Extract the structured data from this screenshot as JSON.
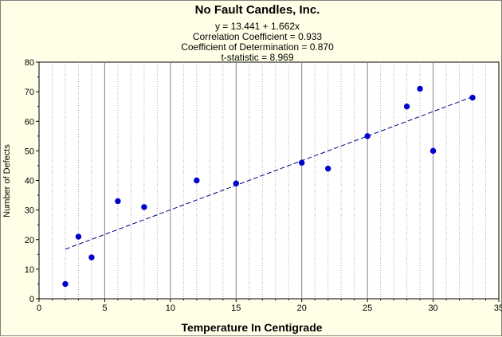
{
  "chart_data": {
    "type": "scatter",
    "title": "No Fault Candles, Inc.",
    "stats": [
      "y = 13.441 + 1.662x",
      "Correlation Coefficient = 0.933",
      "Coefficient of Determination = 0.870",
      "t-statistic = 8.969"
    ],
    "xlabel": "Temperature In Centigrade",
    "ylabel": "Number of Defects",
    "xlim": [
      0,
      35
    ],
    "ylim": [
      0,
      80
    ],
    "xticks": [
      0,
      5,
      10,
      15,
      20,
      25,
      30,
      35
    ],
    "yticks": [
      0,
      10,
      20,
      30,
      40,
      50,
      60,
      70,
      80
    ],
    "grid": true,
    "points": [
      {
        "x": 2,
        "y": 5
      },
      {
        "x": 3,
        "y": 21
      },
      {
        "x": 4,
        "y": 14
      },
      {
        "x": 6,
        "y": 33
      },
      {
        "x": 8,
        "y": 31
      },
      {
        "x": 12,
        "y": 40
      },
      {
        "x": 15,
        "y": 39
      },
      {
        "x": 20,
        "y": 46
      },
      {
        "x": 22,
        "y": 44
      },
      {
        "x": 25,
        "y": 55
      },
      {
        "x": 28,
        "y": 65
      },
      {
        "x": 29,
        "y": 71
      },
      {
        "x": 30,
        "y": 50
      },
      {
        "x": 33,
        "y": 68
      }
    ],
    "regression": {
      "intercept": 13.441,
      "slope": 1.662,
      "x_range": [
        2,
        33
      ]
    },
    "colors": {
      "background": "#ffffe8",
      "plot_background": "#ffffff",
      "marker": "#0000cc",
      "line": "#000080"
    }
  }
}
